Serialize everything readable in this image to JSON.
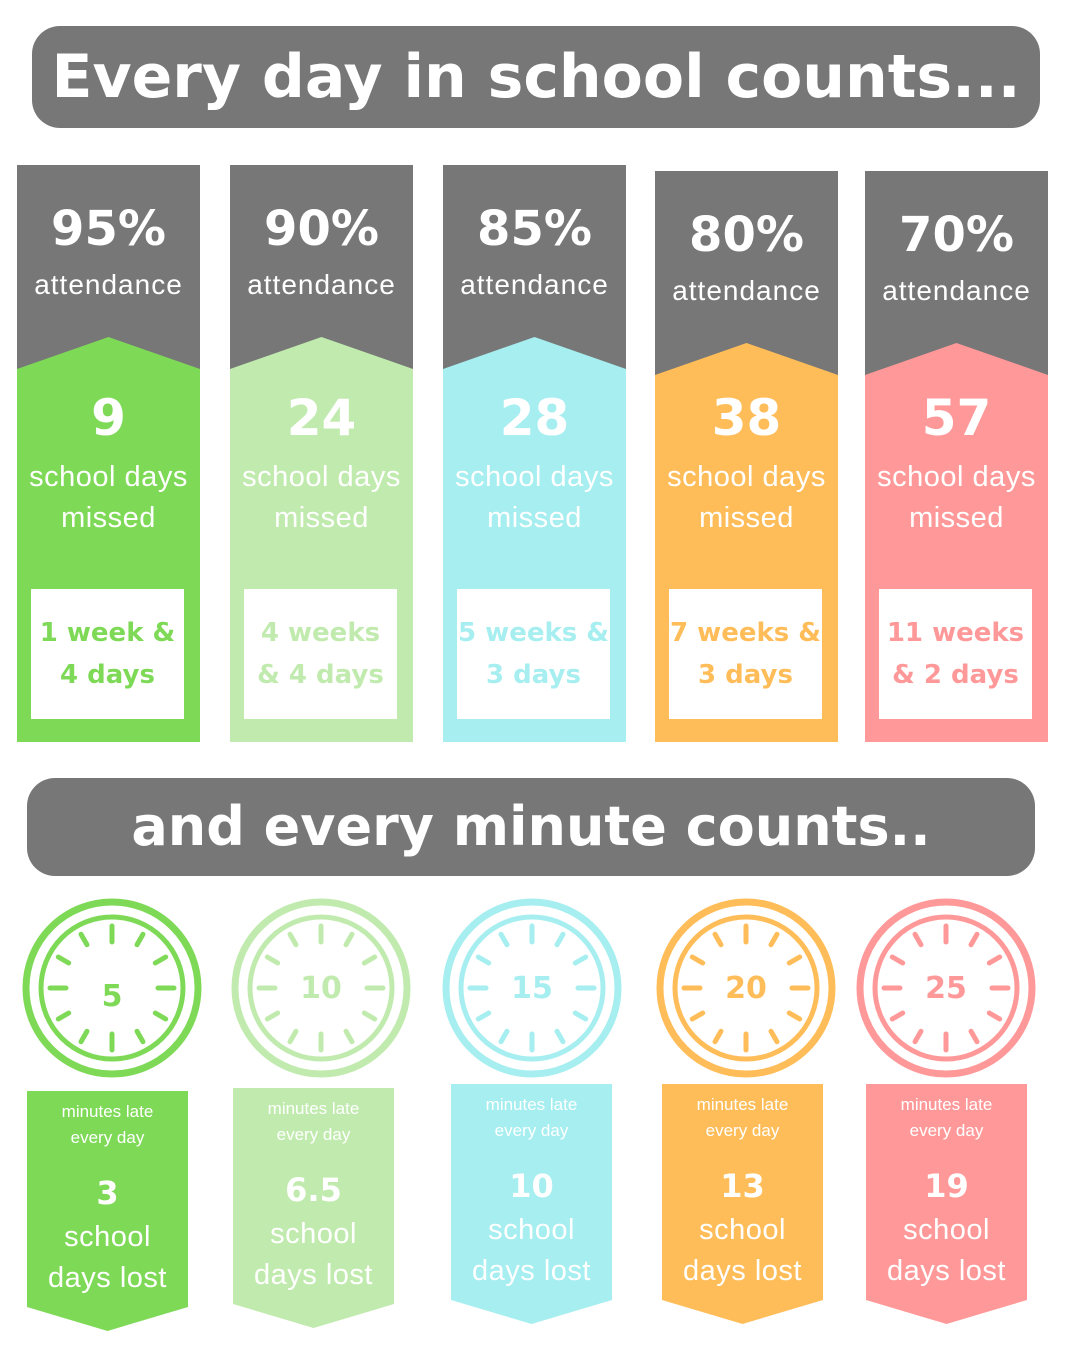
{
  "headline": "Every day in school counts...",
  "subheadline": "and every minute counts..",
  "attendance_columns": [
    {
      "percent": "95%",
      "attendance_label": "attendance",
      "days_missed": "9",
      "days_label_1": "school days",
      "days_label_2": "missed",
      "weeks_1": "1 week &",
      "weeks_2": "4 days",
      "color": "#7ED957"
    },
    {
      "percent": "90%",
      "attendance_label": "attendance",
      "days_missed": "24",
      "days_label_1": "school days",
      "days_label_2": "missed",
      "weeks_1": "4 weeks",
      "weeks_2": "& 4 days",
      "color": "#C1EBAE"
    },
    {
      "percent": "85%",
      "attendance_label": "attendance",
      "days_missed": "28",
      "days_label_1": "school days",
      "days_label_2": "missed",
      "weeks_1": "5 weeks &",
      "weeks_2": "3 days",
      "color": "#A6EEF0"
    },
    {
      "percent": "80%",
      "attendance_label": "attendance",
      "days_missed": "38",
      "days_label_1": "school days",
      "days_label_2": "missed",
      "weeks_1": "7 weeks &",
      "weeks_2": "3 days",
      "color": "#FFBD59"
    },
    {
      "percent": "70%",
      "attendance_label": "attendance",
      "days_missed": "57",
      "days_label_1": "school days",
      "days_label_2": "missed",
      "weeks_1": "11 weeks",
      "weeks_2": "& 2 days",
      "color": "#FF9999"
    }
  ],
  "late_columns": [
    {
      "minutes": "5",
      "late_label_1": "minutes late",
      "late_label_2": "every day",
      "days_lost": "3",
      "lost_label_1": "school",
      "lost_label_2": "days lost",
      "color": "#7ED957"
    },
    {
      "minutes": "10",
      "late_label_1": "minutes late",
      "late_label_2": "every day",
      "days_lost": "6.5",
      "lost_label_1": "school",
      "lost_label_2": "days lost",
      "color": "#C1EBAE"
    },
    {
      "minutes": "15",
      "late_label_1": "minutes late",
      "late_label_2": "every day",
      "days_lost": "10",
      "lost_label_1": "school",
      "lost_label_2": "days lost",
      "color": "#A6EEF0"
    },
    {
      "minutes": "20",
      "late_label_1": "minutes late",
      "late_label_2": "every day",
      "days_lost": "13",
      "lost_label_1": "school",
      "lost_label_2": "days lost",
      "color": "#FFBD59"
    },
    {
      "minutes": "25",
      "late_label_1": "minutes late",
      "late_label_2": "every day",
      "days_lost": "19",
      "lost_label_1": "school",
      "lost_label_2": "days lost",
      "color": "#FF9999"
    }
  ],
  "icons": {
    "clock": "clock-icon"
  },
  "colors": {
    "banner": "#777777",
    "background": "#FFFFFF"
  }
}
